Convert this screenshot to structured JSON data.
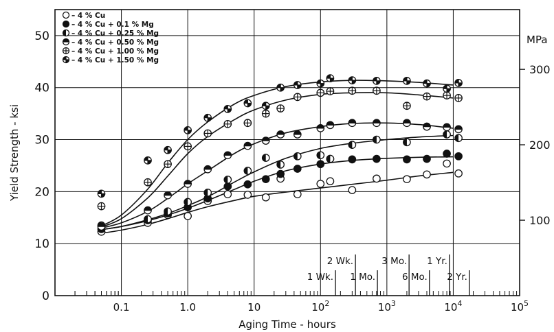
{
  "chart_data": {
    "type": "line",
    "xlabel": "Aging Time - hours",
    "ylabel": "Yield Strength - ksi",
    "y2_unit": "MPa",
    "x_scale": "log",
    "xlim": [
      0.01,
      100000
    ],
    "ylim": [
      0,
      55
    ],
    "x_ticks": [
      {
        "value": 0.1,
        "label": "0.1",
        "sup": ""
      },
      {
        "value": 1,
        "label": "1.0",
        "sup": ""
      },
      {
        "value": 10,
        "label": "10",
        "sup": ""
      },
      {
        "value": 100,
        "label": "10",
        "sup": "2"
      },
      {
        "value": 1000,
        "label": "10",
        "sup": "3"
      },
      {
        "value": 10000,
        "label": "10",
        "sup": "4"
      },
      {
        "value": 100000,
        "label": "10",
        "sup": "5"
      }
    ],
    "y_ticks": [
      0,
      10,
      20,
      30,
      40,
      50
    ],
    "y2_ticks": [
      100,
      200,
      300
    ],
    "grid": true,
    "legend_position": "top-left",
    "time_markers": [
      {
        "label": "1 Wk.",
        "hours": 168,
        "row": "lower"
      },
      {
        "label": "2 Wk.",
        "hours": 336,
        "row": "upper"
      },
      {
        "label": "1 Mo.",
        "hours": 720,
        "row": "lower"
      },
      {
        "label": "3 Mo.",
        "hours": 2160,
        "row": "upper"
      },
      {
        "label": "6 Mo.",
        "hours": 4380,
        "row": "lower"
      },
      {
        "label": "1 Yr.",
        "hours": 8760,
        "row": "upper"
      },
      {
        "label": "2 Yr.",
        "hours": 17520,
        "row": "lower"
      }
    ],
    "series": [
      {
        "name": "– 4 % Cu",
        "marker": "open",
        "points": [
          [
            0.05,
            12.3
          ],
          [
            0.25,
            14.0
          ],
          [
            0.5,
            15.5
          ],
          [
            1.0,
            15.3
          ],
          [
            2.0,
            18.2
          ],
          [
            4.0,
            19.5
          ],
          [
            8.0,
            19.4
          ],
          [
            15,
            18.9
          ],
          [
            25,
            22.5
          ],
          [
            45,
            19.5
          ],
          [
            100,
            21.5
          ],
          [
            140,
            22.0
          ],
          [
            300,
            20.3
          ],
          [
            700,
            22.5
          ],
          [
            2000,
            22.4
          ],
          [
            4000,
            23.3
          ],
          [
            8000,
            25.4
          ],
          [
            12000,
            23.5
          ]
        ],
        "curve": [
          [
            0.05,
            12.0
          ],
          [
            0.1,
            12.6
          ],
          [
            0.25,
            13.7
          ],
          [
            0.5,
            14.8
          ],
          [
            1,
            16.0
          ],
          [
            2,
            17.1
          ],
          [
            5,
            18.3
          ],
          [
            10,
            19.1
          ],
          [
            30,
            19.9
          ],
          [
            100,
            20.7
          ],
          [
            300,
            21.4
          ],
          [
            1000,
            22.2
          ],
          [
            3000,
            23.0
          ],
          [
            10000,
            23.7
          ]
        ]
      },
      {
        "name": "– 4 % Cu + 0.1 % Mg",
        "marker": "filled",
        "points": [
          [
            0.05,
            12.8
          ],
          [
            0.25,
            14.5
          ],
          [
            0.5,
            15.8
          ],
          [
            1.0,
            17.0
          ],
          [
            2.0,
            18.7
          ],
          [
            4.0,
            21.0
          ],
          [
            8.0,
            21.4
          ],
          [
            15,
            22.4
          ],
          [
            25,
            23.4
          ],
          [
            45,
            24.4
          ],
          [
            100,
            25.3
          ],
          [
            140,
            26.3
          ],
          [
            300,
            26.2
          ],
          [
            700,
            26.3
          ],
          [
            2000,
            26.2
          ],
          [
            4000,
            26.3
          ],
          [
            8000,
            27.3
          ],
          [
            12000,
            26.8
          ]
        ],
        "curve": [
          [
            0.05,
            12.7
          ],
          [
            0.1,
            13.3
          ],
          [
            0.25,
            14.4
          ],
          [
            0.5,
            15.5
          ],
          [
            1,
            16.8
          ],
          [
            2,
            18.3
          ],
          [
            5,
            20.4
          ],
          [
            10,
            22.0
          ],
          [
            30,
            24.0
          ],
          [
            100,
            25.3
          ],
          [
            300,
            26.0
          ],
          [
            1000,
            26.4
          ],
          [
            3000,
            26.6
          ],
          [
            10000,
            26.7
          ]
        ]
      },
      {
        "name": "– 4 % Cu + 0.25 % Mg",
        "marker": "half-left",
        "points": [
          [
            0.05,
            13.5
          ],
          [
            0.25,
            14.7
          ],
          [
            0.5,
            16.2
          ],
          [
            1.0,
            18.0
          ],
          [
            2.0,
            19.8
          ],
          [
            4.0,
            22.3
          ],
          [
            8.0,
            24.0
          ],
          [
            15,
            26.5
          ],
          [
            25,
            25.2
          ],
          [
            45,
            26.8
          ],
          [
            100,
            27.0
          ],
          [
            140,
            26.3
          ],
          [
            300,
            29.0
          ],
          [
            700,
            30.0
          ],
          [
            2000,
            29.5
          ],
          [
            4000,
            32.5
          ],
          [
            8000,
            31.0
          ],
          [
            12000,
            30.3
          ]
        ],
        "curve": [
          [
            0.05,
            12.7
          ],
          [
            0.1,
            13.3
          ],
          [
            0.25,
            14.6
          ],
          [
            0.5,
            15.8
          ],
          [
            1,
            17.3
          ],
          [
            2,
            19.0
          ],
          [
            5,
            21.8
          ],
          [
            10,
            23.8
          ],
          [
            30,
            26.4
          ],
          [
            100,
            28.3
          ],
          [
            300,
            29.3
          ],
          [
            1000,
            30.0
          ],
          [
            3000,
            30.5
          ],
          [
            10000,
            30.8
          ]
        ]
      },
      {
        "name": "– 4 % Cu + 0.50 % Mg",
        "marker": "half-top",
        "points": [
          [
            0.05,
            13.3
          ],
          [
            0.25,
            16.4
          ],
          [
            0.5,
            19.3
          ],
          [
            1.0,
            21.5
          ],
          [
            2.0,
            24.3
          ],
          [
            4.0,
            27.0
          ],
          [
            8.0,
            28.8
          ],
          [
            15,
            29.8
          ],
          [
            25,
            31.0
          ],
          [
            45,
            31.0
          ],
          [
            100,
            32.2
          ],
          [
            140,
            32.8
          ],
          [
            300,
            33.2
          ],
          [
            700,
            33.2
          ],
          [
            2000,
            33.2
          ],
          [
            4000,
            32.5
          ],
          [
            8000,
            32.4
          ],
          [
            12000,
            32.0
          ]
        ],
        "curve": [
          [
            0.05,
            13.0
          ],
          [
            0.1,
            14.0
          ],
          [
            0.25,
            16.2
          ],
          [
            0.5,
            18.7
          ],
          [
            1,
            21.5
          ],
          [
            2,
            24.0
          ],
          [
            5,
            27.3
          ],
          [
            10,
            29.2
          ],
          [
            30,
            31.3
          ],
          [
            100,
            32.5
          ],
          [
            300,
            33.1
          ],
          [
            1000,
            33.2
          ],
          [
            3000,
            32.9
          ],
          [
            10000,
            32.2
          ]
        ]
      },
      {
        "name": "– 4 % Cu + 1.00 % Mg",
        "marker": "cross",
        "points": [
          [
            0.05,
            17.2
          ],
          [
            0.25,
            21.8
          ],
          [
            0.5,
            25.3
          ],
          [
            1.0,
            28.7
          ],
          [
            2.0,
            31.2
          ],
          [
            4.0,
            33.0
          ],
          [
            8.0,
            33.2
          ],
          [
            15,
            35.0
          ],
          [
            25,
            36.0
          ],
          [
            45,
            38.2
          ],
          [
            100,
            39.0
          ],
          [
            140,
            39.3
          ],
          [
            300,
            39.4
          ],
          [
            700,
            39.4
          ],
          [
            2000,
            36.5
          ],
          [
            4000,
            38.3
          ],
          [
            8000,
            38.5
          ],
          [
            12000,
            38.0
          ]
        ],
        "curve": [
          [
            0.05,
            13.2
          ],
          [
            0.1,
            14.8
          ],
          [
            0.25,
            18.8
          ],
          [
            0.5,
            23.0
          ],
          [
            1,
            27.3
          ],
          [
            2,
            30.6
          ],
          [
            5,
            33.8
          ],
          [
            10,
            35.7
          ],
          [
            30,
            37.6
          ],
          [
            100,
            38.7
          ],
          [
            300,
            39.0
          ],
          [
            1000,
            39.0
          ],
          [
            3000,
            38.6
          ],
          [
            10000,
            38.0
          ]
        ]
      },
      {
        "name": "– 4 % Cu + 1.50 % Mg",
        "marker": "cross-dot",
        "points": [
          [
            0.05,
            19.6
          ],
          [
            0.25,
            26.0
          ],
          [
            0.5,
            28.0
          ],
          [
            1.0,
            31.8
          ],
          [
            2.0,
            34.2
          ],
          [
            4.0,
            35.9
          ],
          [
            8.0,
            37.0
          ],
          [
            15,
            36.5
          ],
          [
            25,
            40.0
          ],
          [
            45,
            40.5
          ],
          [
            100,
            40.8
          ],
          [
            140,
            41.8
          ],
          [
            300,
            41.4
          ],
          [
            700,
            41.3
          ],
          [
            2000,
            41.3
          ],
          [
            4000,
            40.8
          ],
          [
            8000,
            39.8
          ],
          [
            12000,
            40.9
          ]
        ],
        "curve": [
          [
            0.05,
            13.4
          ],
          [
            0.1,
            15.5
          ],
          [
            0.25,
            20.5
          ],
          [
            0.5,
            25.5
          ],
          [
            1,
            30.0
          ],
          [
            2,
            33.4
          ],
          [
            5,
            36.8
          ],
          [
            10,
            38.5
          ],
          [
            30,
            40.2
          ],
          [
            100,
            41.1
          ],
          [
            300,
            41.4
          ],
          [
            1000,
            41.3
          ],
          [
            3000,
            41.0
          ],
          [
            10000,
            40.5
          ]
        ]
      }
    ]
  }
}
